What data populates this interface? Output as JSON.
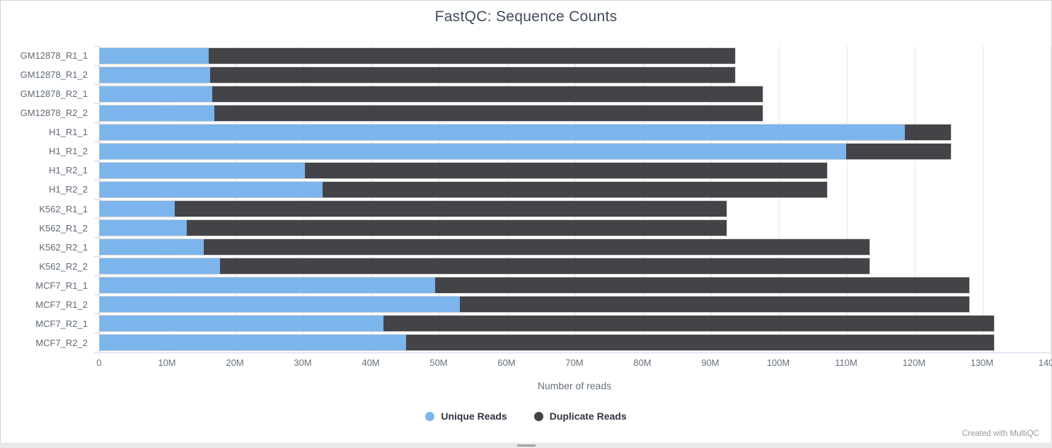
{
  "title": "FastQC: Sequence Counts",
  "footer": {
    "credit": "Created with MultiQC"
  },
  "colors": {
    "unique": "#7cb5ec",
    "duplicate": "#434348",
    "gridline": "#e6e6e6",
    "axis_line": "#ccd6eb",
    "title_text": "#3f4b5b",
    "tick_text": "#65707a",
    "credit_text": "#9a9a9a"
  },
  "chart_data": {
    "type": "bar",
    "orientation": "horizontal",
    "stacked": true,
    "title": "FastQC: Sequence Counts",
    "xlabel": "Number of reads",
    "ylabel": "",
    "unit": "millions of reads",
    "xlim": [
      0,
      140
    ],
    "grid": true,
    "legend_position": "bottom",
    "categories": [
      "GM12878_R1_1",
      "GM12878_R1_2",
      "GM12878_R2_1",
      "GM12878_R2_2",
      "H1_R1_1",
      "H1_R1_2",
      "H1_R2_1",
      "H1_R2_2",
      "K562_R1_1",
      "K562_R1_2",
      "K562_R2_1",
      "K562_R2_2",
      "MCF7_R1_1",
      "MCF7_R1_2",
      "MCF7_R2_1",
      "MCF7_R2_2"
    ],
    "series": [
      {
        "name": "Unique Reads",
        "color": "#7cb5ec",
        "values": [
          16.0,
          16.3,
          16.6,
          16.9,
          118.5,
          109.9,
          30.2,
          32.8,
          11.0,
          12.8,
          15.3,
          17.7,
          49.4,
          53.0,
          41.8,
          45.1
        ]
      },
      {
        "name": "Duplicate Reads",
        "color": "#434348",
        "values": [
          77.5,
          77.2,
          81.0,
          80.7,
          6.8,
          15.4,
          76.9,
          74.3,
          81.3,
          79.5,
          98.0,
          95.6,
          78.6,
          75.0,
          89.9,
          86.6
        ]
      }
    ],
    "stack_totals": [
      93.5,
      93.5,
      97.6,
      97.6,
      125.3,
      125.3,
      107.1,
      107.1,
      92.3,
      92.3,
      113.3,
      113.3,
      128.0,
      128.0,
      131.7,
      131.7
    ],
    "xticks": [
      "0",
      "10M",
      "20M",
      "30M",
      "40M",
      "50M",
      "60M",
      "70M",
      "80M",
      "90M",
      "100M",
      "110M",
      "120M",
      "130M",
      "140M"
    ]
  }
}
